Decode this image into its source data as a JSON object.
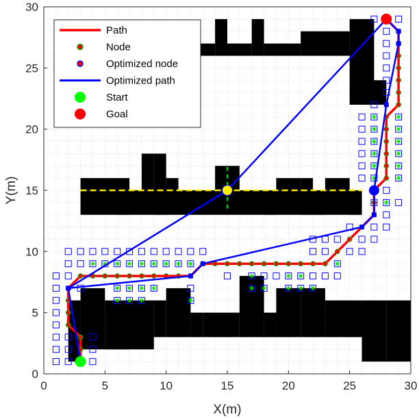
{
  "chart_data": {
    "type": "line",
    "xlabel": "X(m)",
    "ylabel": "Y(m)",
    "xlim": [
      0,
      30
    ],
    "ylim": [
      0,
      30
    ],
    "xticks": [
      0,
      5,
      10,
      15,
      20,
      25,
      30
    ],
    "yticks": [
      0,
      5,
      10,
      15,
      20,
      25,
      30
    ],
    "grid": "minor-dotted",
    "legend_position": "top-left",
    "legend": [
      {
        "label": "Path",
        "kind": "path"
      },
      {
        "label": "Node",
        "kind": "node"
      },
      {
        "label": "Optimized node",
        "kind": "opt-node"
      },
      {
        "label": "Optimized path",
        "kind": "opt-path"
      },
      {
        "label": "Start",
        "kind": "start"
      },
      {
        "label": "Goal",
        "kind": "goal"
      }
    ],
    "colors": {
      "path": "#ff0000",
      "optimized_path": "#0000ff",
      "start": "#00ff00",
      "goal": "#ff0000",
      "obstacle": "#000000",
      "visited": "#0000ff",
      "explored": "#00dd00",
      "guide": "#ffee00",
      "guide_vertical": "#00cc00"
    },
    "start": [
      3,
      1
    ],
    "goal": [
      28,
      29
    ],
    "intermediate_point": [
      15,
      15
    ],
    "optimized_node": [
      27,
      15
    ],
    "obstacles": [
      [
        2,
        1,
        3,
        6
      ],
      [
        3,
        2,
        5,
        7
      ],
      [
        5,
        2,
        9,
        6
      ],
      [
        9,
        3,
        10,
        6
      ],
      [
        10,
        3,
        12,
        7
      ],
      [
        12,
        3,
        13,
        5
      ],
      [
        13,
        3,
        16,
        5
      ],
      [
        16,
        3,
        18,
        8
      ],
      [
        18,
        3,
        19,
        5
      ],
      [
        19,
        3,
        21,
        7
      ],
      [
        21,
        3,
        23,
        7
      ],
      [
        23,
        3,
        26,
        6
      ],
      [
        26,
        1,
        28,
        6
      ],
      [
        28,
        1,
        30,
        6
      ],
      [
        5,
        2,
        7,
        3
      ],
      [
        3,
        13,
        26,
        15
      ],
      [
        3,
        15,
        7,
        16
      ],
      [
        8,
        15,
        9,
        18
      ],
      [
        9,
        15,
        10,
        18
      ],
      [
        10,
        15,
        11,
        16
      ],
      [
        14,
        15,
        16,
        17
      ],
      [
        19,
        15,
        21,
        16
      ],
      [
        21,
        15,
        22,
        16
      ],
      [
        23,
        15,
        25,
        16
      ],
      [
        25,
        15,
        26,
        15
      ],
      [
        6,
        13,
        7,
        14
      ],
      [
        9,
        13,
        10,
        14
      ],
      [
        18,
        13,
        19,
        14
      ],
      [
        21,
        13,
        23,
        14
      ],
      [
        25,
        13,
        26,
        14
      ],
      [
        12,
        26,
        14,
        27
      ],
      [
        14,
        26,
        15,
        29
      ],
      [
        15,
        26,
        17,
        27
      ],
      [
        17,
        26,
        18,
        29
      ],
      [
        18,
        26,
        21,
        27
      ],
      [
        21,
        26,
        25,
        28
      ],
      [
        25,
        26,
        27,
        29
      ],
      [
        25,
        22,
        27,
        26
      ],
      [
        26,
        22,
        28,
        24
      ]
    ],
    "series": [
      {
        "name": "Path",
        "points": [
          [
            3,
            1
          ],
          [
            3,
            2
          ],
          [
            3,
            3
          ],
          [
            2,
            4
          ],
          [
            2,
            5
          ],
          [
            2,
            6
          ],
          [
            2,
            7
          ],
          [
            3,
            8
          ],
          [
            4,
            8
          ],
          [
            5,
            8
          ],
          [
            6,
            8
          ],
          [
            7,
            8
          ],
          [
            8,
            8
          ],
          [
            9,
            8
          ],
          [
            10,
            8
          ],
          [
            11,
            8
          ],
          [
            12,
            8
          ],
          [
            13,
            9
          ],
          [
            14,
            9
          ],
          [
            15,
            9
          ],
          [
            16,
            9
          ],
          [
            17,
            9
          ],
          [
            18,
            9
          ],
          [
            19,
            9
          ],
          [
            20,
            9
          ],
          [
            21,
            9
          ],
          [
            22,
            9
          ],
          [
            23,
            9
          ],
          [
            24,
            10
          ],
          [
            25,
            11
          ],
          [
            26,
            12
          ],
          [
            27,
            13
          ],
          [
            27,
            14
          ],
          [
            27,
            15
          ],
          [
            28,
            16
          ],
          [
            28,
            17
          ],
          [
            28,
            18
          ],
          [
            28,
            19
          ],
          [
            28,
            20
          ],
          [
            28,
            21
          ],
          [
            29,
            22
          ],
          [
            29,
            23
          ],
          [
            29,
            24
          ],
          [
            29,
            25
          ],
          [
            29,
            26
          ],
          [
            29,
            27
          ],
          [
            29,
            28
          ],
          [
            28,
            29
          ]
        ]
      },
      {
        "name": "Optimized path",
        "points": [
          [
            3,
            1
          ],
          [
            2,
            7
          ],
          [
            15,
            15
          ],
          [
            28,
            29
          ],
          [
            29,
            28
          ],
          [
            29,
            27
          ],
          [
            28,
            22
          ],
          [
            27,
            15
          ],
          [
            27,
            13
          ],
          [
            26,
            12
          ],
          [
            13,
            9
          ],
          [
            12,
            8
          ],
          [
            2,
            7
          ],
          [
            3,
            1
          ]
        ]
      }
    ],
    "visited_nodes": [
      [
        1,
        1
      ],
      [
        2,
        1
      ],
      [
        4,
        1
      ],
      [
        1,
        2
      ],
      [
        2,
        2
      ],
      [
        4,
        2
      ],
      [
        1,
        3
      ],
      [
        2,
        3
      ],
      [
        4,
        3
      ],
      [
        1,
        4
      ],
      [
        1,
        5
      ],
      [
        1,
        6
      ],
      [
        1,
        7
      ],
      [
        3,
        7
      ],
      [
        1,
        8
      ],
      [
        2,
        8
      ],
      [
        12,
        7
      ],
      [
        15,
        8
      ],
      [
        18,
        8
      ],
      [
        19,
        8
      ],
      [
        22,
        8
      ],
      [
        23,
        8
      ],
      [
        24,
        8
      ],
      [
        2,
        9
      ],
      [
        3,
        9
      ],
      [
        13,
        10
      ],
      [
        2,
        10
      ],
      [
        3,
        10
      ],
      [
        4,
        10
      ],
      [
        5,
        10
      ],
      [
        6,
        10
      ],
      [
        7,
        10
      ],
      [
        8,
        10
      ],
      [
        9,
        10
      ],
      [
        10,
        10
      ],
      [
        11,
        10
      ],
      [
        12,
        10
      ],
      [
        22,
        10
      ],
      [
        23,
        10
      ],
      [
        25,
        10
      ],
      [
        26,
        10
      ],
      [
        22,
        11
      ],
      [
        23,
        11
      ],
      [
        24,
        11
      ],
      [
        25,
        12
      ],
      [
        26,
        11
      ],
      [
        27,
        11
      ],
      [
        27,
        12
      ],
      [
        28,
        12
      ],
      [
        28,
        13
      ],
      [
        29,
        14
      ],
      [
        28,
        15
      ],
      [
        26,
        16
      ],
      [
        26,
        17
      ],
      [
        26,
        18
      ],
      [
        26,
        19
      ],
      [
        26,
        20
      ],
      [
        26,
        21
      ],
      [
        27,
        22
      ],
      [
        28,
        23
      ],
      [
        28,
        24
      ],
      [
        28,
        25
      ],
      [
        28,
        26
      ],
      [
        28,
        27
      ],
      [
        28,
        28
      ],
      [
        27,
        29
      ],
      [
        29,
        29
      ]
    ],
    "explored_nodes": [
      [
        4,
        9
      ],
      [
        5,
        9
      ],
      [
        6,
        9
      ],
      [
        7,
        9
      ],
      [
        8,
        9
      ],
      [
        9,
        9
      ],
      [
        10,
        9
      ],
      [
        11,
        9
      ],
      [
        12,
        9
      ],
      [
        6,
        7
      ],
      [
        6,
        6
      ],
      [
        7,
        7
      ],
      [
        7,
        6
      ],
      [
        8,
        7
      ],
      [
        8,
        6
      ],
      [
        9,
        7
      ],
      [
        12,
        6
      ],
      [
        17,
        8
      ],
      [
        20,
        8
      ],
      [
        21,
        8
      ],
      [
        20,
        7
      ],
      [
        21,
        7
      ],
      [
        24,
        9
      ],
      [
        17,
        7
      ],
      [
        18,
        7
      ],
      [
        22,
        7
      ],
      [
        27,
        16
      ],
      [
        27,
        17
      ],
      [
        27,
        18
      ],
      [
        27,
        19
      ],
      [
        27,
        20
      ],
      [
        27,
        21
      ],
      [
        29,
        16
      ],
      [
        29,
        17
      ],
      [
        29,
        18
      ],
      [
        29,
        19
      ],
      [
        29,
        20
      ],
      [
        29,
        21
      ],
      [
        28,
        14
      ],
      [
        27,
        14
      ]
    ]
  }
}
